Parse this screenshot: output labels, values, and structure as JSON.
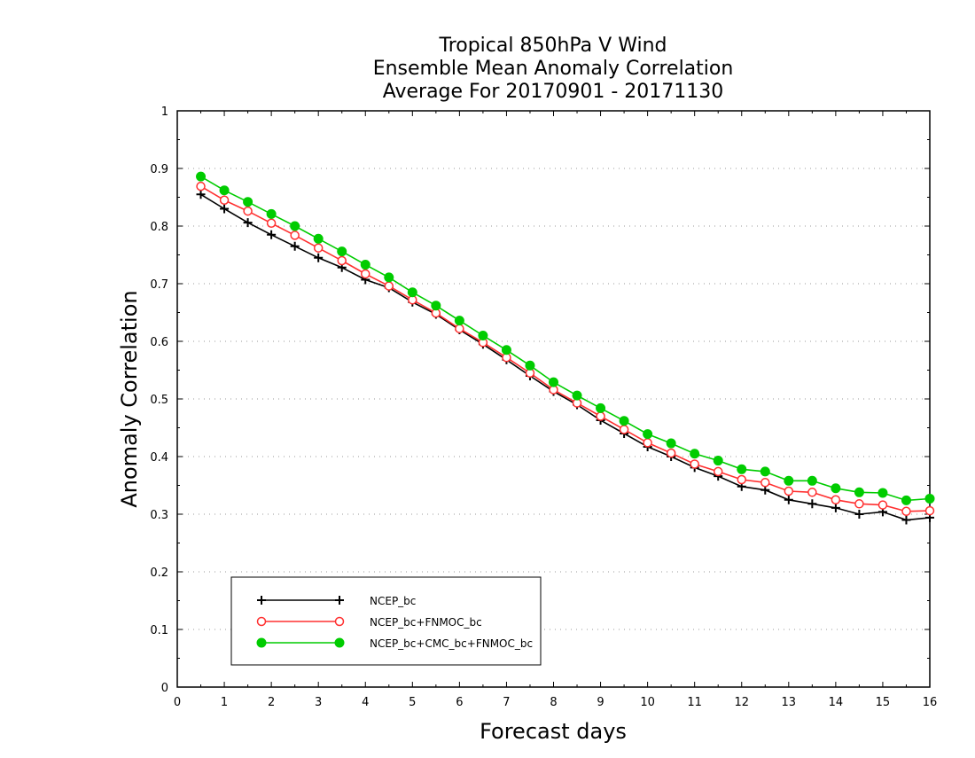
{
  "chart_data": {
    "type": "line",
    "title": [
      "Tropical 850hPa V Wind",
      "Ensemble Mean Anomaly Correlation",
      "Average For 20170901 - 20171130"
    ],
    "xlabel": "Forecast days",
    "ylabel": "Anomaly Correlation",
    "xlim": [
      0,
      16
    ],
    "ylim": [
      0,
      1
    ],
    "xticks": [
      "0",
      "1",
      "2",
      "3",
      "4",
      "5",
      "6",
      "7",
      "8",
      "9",
      "10",
      "11",
      "12",
      "13",
      "14",
      "15",
      "16"
    ],
    "yticks": [
      "0",
      "0.1",
      "0.2",
      "0.3",
      "0.4",
      "0.5",
      "0.6",
      "0.7",
      "0.8",
      "0.9",
      "1"
    ],
    "grid": true,
    "legend_position": "bottom-left",
    "x": [
      0.5,
      1,
      1.5,
      2,
      2.5,
      3,
      3.5,
      4,
      4.5,
      5,
      5.5,
      6,
      6.5,
      7,
      7.5,
      8,
      8.5,
      9,
      9.5,
      10,
      10.5,
      11,
      11.5,
      12,
      12.5,
      13,
      13.5,
      14,
      14.5,
      15,
      15.5,
      16
    ],
    "series": [
      {
        "name": "NCEP_bc",
        "color": "#000000",
        "marker": "plus",
        "values": [
          0.855,
          0.83,
          0.806,
          0.785,
          0.765,
          0.745,
          0.728,
          0.707,
          0.693,
          0.668,
          0.647,
          0.62,
          0.595,
          0.568,
          0.54,
          0.513,
          0.49,
          0.463,
          0.44,
          0.417,
          0.4,
          0.381,
          0.366,
          0.348,
          0.342,
          0.325,
          0.318,
          0.311,
          0.3,
          0.304,
          0.29,
          0.294
        ]
      },
      {
        "name": "NCEP_bc+FNMOC_bc",
        "color": "#ff3030",
        "marker": "open-circle",
        "values": [
          0.869,
          0.845,
          0.826,
          0.805,
          0.784,
          0.762,
          0.74,
          0.717,
          0.696,
          0.672,
          0.649,
          0.622,
          0.598,
          0.572,
          0.545,
          0.516,
          0.493,
          0.47,
          0.447,
          0.424,
          0.406,
          0.387,
          0.374,
          0.36,
          0.355,
          0.34,
          0.338,
          0.325,
          0.318,
          0.316,
          0.305,
          0.306
        ]
      },
      {
        "name": "NCEP_bc+CMC_bc+FNMOC_bc",
        "color": "#00cc00",
        "marker": "filled-circle",
        "values": [
          0.886,
          0.862,
          0.842,
          0.821,
          0.8,
          0.778,
          0.756,
          0.733,
          0.711,
          0.685,
          0.662,
          0.636,
          0.61,
          0.585,
          0.558,
          0.529,
          0.506,
          0.484,
          0.462,
          0.439,
          0.423,
          0.405,
          0.393,
          0.378,
          0.374,
          0.358,
          0.358,
          0.345,
          0.338,
          0.337,
          0.324,
          0.327
        ]
      }
    ]
  }
}
